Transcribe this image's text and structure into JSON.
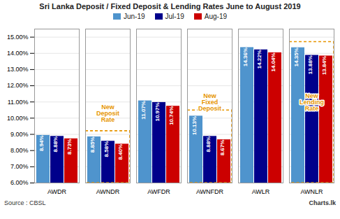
{
  "chart_data": {
    "type": "bar",
    "title": "Sri Lanka Deposit / Fixed Deposit & Lending Rates June to August 2019",
    "categories": [
      "AWDR",
      "AWNDR",
      "AWFDR",
      "AWNFDR",
      "AWLR",
      "AWNLR"
    ],
    "series": [
      {
        "name": "Jun-19",
        "color": "#4f94cd",
        "values": [
          8.94,
          8.85,
          11.07,
          10.13,
          14.36,
          14.35
        ],
        "value_labels": [
          "8.94%",
          "8.85%",
          "11.07%",
          "10.13%",
          "14.36%",
          "14.35%"
        ]
      },
      {
        "name": "Jul-19",
        "color": "#00008b",
        "values": [
          8.88,
          8.58,
          10.97,
          8.88,
          14.22,
          13.88
        ],
        "value_labels": [
          "8.88%",
          "8.58%",
          "10.97%",
          "8.88%",
          "14.22%",
          "13.88%"
        ]
      },
      {
        "name": "Aug-19",
        "color": "#cc0000",
        "values": [
          8.73,
          8.4,
          10.74,
          8.67,
          14.04,
          13.84
        ],
        "value_labels": [
          "8.73%",
          "8.40%",
          "10.74%",
          "8.67%",
          "14.04%",
          "13.84%"
        ]
      }
    ],
    "ylim": [
      6.0,
      15.5
    ],
    "yticks": [
      {
        "value": 6.0,
        "label": "6.00%"
      },
      {
        "value": 7.0,
        "label": "7.00%"
      },
      {
        "value": 8.0,
        "label": "8.00%"
      },
      {
        "value": 9.0,
        "label": "9.00%"
      },
      {
        "value": 10.0,
        "label": "10.00%"
      },
      {
        "value": 11.0,
        "label": "11.00%"
      },
      {
        "value": 12.0,
        "label": "12.00%"
      },
      {
        "value": 13.0,
        "label": "13.00%"
      },
      {
        "value": 14.0,
        "label": "14.00%"
      },
      {
        "value": 15.0,
        "label": "15.00%"
      }
    ],
    "grid": true,
    "legend": "top",
    "data_labels": true,
    "annotations": [
      {
        "category": "AWNDR",
        "text": "New\nDeposit\nRate",
        "y": 10.3,
        "color": "#e69500"
      },
      {
        "category": "AWNFDR",
        "text": "New\nFixed\nDeposit",
        "y": 11.0,
        "color": "#e69500"
      },
      {
        "category": "AWNLR",
        "text": "New\nLending\nRate",
        "y": 11.0,
        "color": "#e69500"
      }
    ],
    "source": "Source : CBSL",
    "credit": "Charts.lk"
  }
}
